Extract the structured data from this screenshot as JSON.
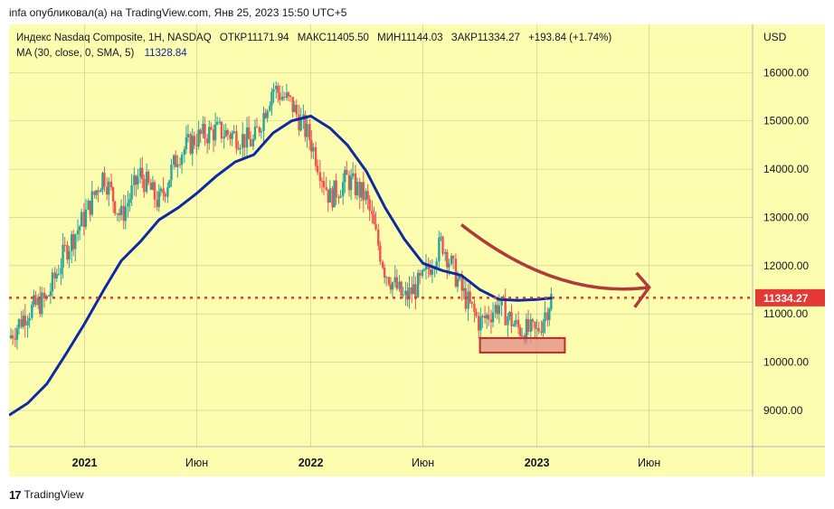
{
  "caption": "infa опубликовал(а) на TradingView.com, Янв 25, 2023 15:50 UTC+5",
  "legend": {
    "symbol": "Индекс Nasdaq Composite, 1Н, NASDAQ",
    "open": "ОТКР11171.94",
    "high": "МАКС11405.50",
    "low": "МИН11144.03",
    "close": "ЗАКР11334.27",
    "change": "+193.84 (+1.74%)",
    "ma_label": "MA (30, close, 0, SMA, 5)",
    "ma_value": "11328.84"
  },
  "footer": {
    "logo": "17",
    "brand": "TradingView"
  },
  "colors": {
    "background": "#fdfdb0",
    "up": "#26a69a",
    "down": "#ef5350",
    "ma": "#0d2aa3",
    "price_line": "#e53935",
    "arrow": "#b03a3a",
    "support_fill": "#e08a86",
    "support_stroke": "#c62828"
  },
  "chart_data": {
    "type": "candlestick",
    "currency": "USD",
    "ylim": [
      8250,
      17000
    ],
    "y_ticks": [
      9000,
      10000,
      11000,
      12000,
      13000,
      14000,
      15000,
      16000
    ],
    "y_tick_labels": [
      "9000.00",
      "10000.00",
      "11000.00",
      "12000.00",
      "13000.00",
      "14000.00",
      "15000.00",
      "16000.00"
    ],
    "x_range": [
      "2020-09-01",
      "2023-12-15"
    ],
    "x_ticks": [
      {
        "date": "2021-01-01",
        "label": "2021",
        "bold": true
      },
      {
        "date": "2021-07-01",
        "label": "Июн",
        "bold": false
      },
      {
        "date": "2022-01-01",
        "label": "2022",
        "bold": true
      },
      {
        "date": "2022-07-01",
        "label": "Июн",
        "bold": false
      },
      {
        "date": "2023-01-01",
        "label": "2023",
        "bold": true
      },
      {
        "date": "2023-07-01",
        "label": "Июн",
        "bold": false
      }
    ],
    "last_price": 11334.27,
    "last_price_label": "11334.27",
    "ma_series": [
      [
        "2020-09-01",
        8900
      ],
      [
        "2020-10-01",
        9150
      ],
      [
        "2020-11-01",
        9550
      ],
      [
        "2020-12-01",
        10150
      ],
      [
        "2021-01-01",
        10800
      ],
      [
        "2021-02-01",
        11500
      ],
      [
        "2021-03-01",
        12100
      ],
      [
        "2021-04-01",
        12500
      ],
      [
        "2021-05-01",
        12950
      ],
      [
        "2021-06-01",
        13200
      ],
      [
        "2021-07-01",
        13500
      ],
      [
        "2021-08-01",
        13850
      ],
      [
        "2021-09-01",
        14150
      ],
      [
        "2021-10-01",
        14300
      ],
      [
        "2021-11-01",
        14750
      ],
      [
        "2021-12-01",
        15000
      ],
      [
        "2022-01-01",
        15100
      ],
      [
        "2022-02-01",
        14850
      ],
      [
        "2022-03-01",
        14500
      ],
      [
        "2022-04-01",
        13950
      ],
      [
        "2022-05-01",
        13200
      ],
      [
        "2022-06-01",
        12550
      ],
      [
        "2022-07-01",
        12050
      ],
      [
        "2022-08-01",
        11900
      ],
      [
        "2022-09-01",
        11800
      ],
      [
        "2022-10-01",
        11500
      ],
      [
        "2022-11-01",
        11300
      ],
      [
        "2022-12-01",
        11280
      ],
      [
        "2023-01-01",
        11300
      ],
      [
        "2023-01-25",
        11330
      ]
    ],
    "price_path": [
      [
        "2020-09-01",
        10500
      ],
      [
        "2020-10-01",
        11050
      ],
      [
        "2020-11-01",
        11300
      ],
      [
        "2020-12-01",
        12300
      ],
      [
        "2021-01-01",
        13000
      ],
      [
        "2021-02-01",
        13900
      ],
      [
        "2021-03-01",
        13000
      ],
      [
        "2021-04-01",
        13900
      ],
      [
        "2021-05-01",
        13300
      ],
      [
        "2021-06-01",
        14300
      ],
      [
        "2021-07-01",
        14650
      ],
      [
        "2021-08-01",
        14800
      ],
      [
        "2021-09-01",
        14700
      ],
      [
        "2021-10-01",
        14550
      ],
      [
        "2021-11-01",
        15700
      ],
      [
        "2021-12-01",
        15350
      ],
      [
        "2022-01-01",
        14600
      ],
      [
        "2022-02-01",
        13400
      ],
      [
        "2022-03-01",
        13800
      ],
      [
        "2022-04-01",
        13400
      ],
      [
        "2022-05-01",
        11900
      ],
      [
        "2022-06-01",
        11300
      ],
      [
        "2022-07-01",
        11700
      ],
      [
        "2022-08-01",
        12500
      ],
      [
        "2022-09-01",
        11500
      ],
      [
        "2022-10-01",
        10800
      ],
      [
        "2022-11-01",
        11200
      ],
      [
        "2022-12-01",
        10700
      ],
      [
        "2023-01-01",
        10600
      ],
      [
        "2023-01-25",
        11334
      ]
    ],
    "annotations": [
      {
        "type": "rectangle",
        "from": [
          "2022-10-01",
          10200
        ],
        "to": [
          "2023-02-15",
          10500
        ]
      },
      {
        "type": "curved-arrow",
        "points": [
          [
            "2022-09-01",
            12850
          ],
          [
            "2023-02-01",
            11300
          ],
          [
            "2023-07-01",
            11550
          ]
        ]
      }
    ]
  }
}
